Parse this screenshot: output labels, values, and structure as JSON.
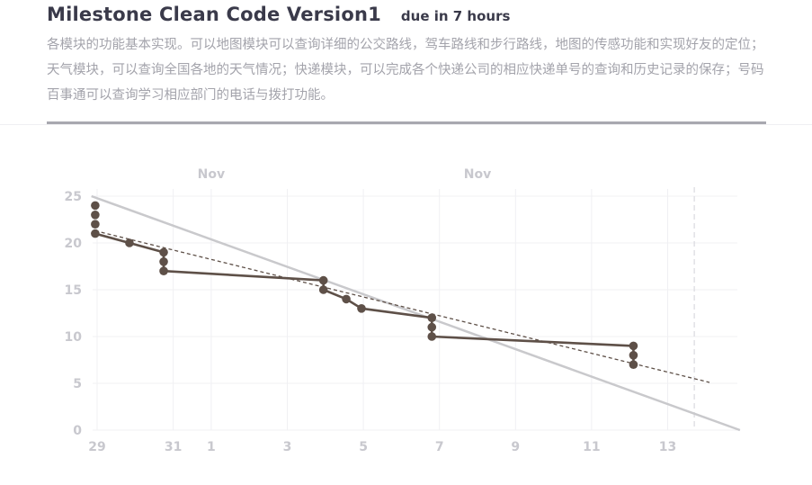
{
  "milestone": {
    "title": "Milestone Clean Code Version1",
    "due": "due in 7 hours",
    "description": "各模块的功能基本实现。可以地图模块可以查询详细的公交路线，驾车路线和步行路线，地图的传感功能和实现好友的定位；天气模块，可以查询全国各地的天气情况；快递模块，可以完成各个快递公司的相应快递单号的查询和历史记录的保存；号码百事通可以查询学习相应部门的电话与拨打功能。"
  },
  "colors": {
    "actual": "#5e5048",
    "ideal": "#c9c9cc",
    "trend": "#5e5048",
    "grid": "#f0f0f3",
    "marker": "#dadadf"
  },
  "chart_data": {
    "type": "line",
    "xlabel": "",
    "ylabel": "",
    "ylim": [
      0,
      25
    ],
    "y_ticks": [
      0,
      5,
      10,
      15,
      20,
      25
    ],
    "month_labels": [
      {
        "label": "Nov",
        "x": 3.0
      },
      {
        "label": "Nov",
        "x": 10.0
      }
    ],
    "x_ticks": [
      {
        "label": "29",
        "x": 0
      },
      {
        "label": "31",
        "x": 2
      },
      {
        "label": "1",
        "x": 3
      },
      {
        "label": "3",
        "x": 5
      },
      {
        "label": "5",
        "x": 7
      },
      {
        "label": "7",
        "x": 9
      },
      {
        "label": "9",
        "x": 11
      },
      {
        "label": "11",
        "x": 13
      },
      {
        "label": "13",
        "x": 15
      }
    ],
    "xlim": [
      -0.15,
      16.9
    ],
    "due_marker_x": 15.7,
    "series": [
      {
        "role": "actual",
        "points": [
          {
            "x": -0.05,
            "y": 24
          },
          {
            "x": -0.05,
            "y": 23
          },
          {
            "x": -0.05,
            "y": 22
          },
          {
            "x": -0.05,
            "y": 21
          },
          {
            "x": 0.85,
            "y": 20
          },
          {
            "x": 1.75,
            "y": 19
          },
          {
            "x": 1.75,
            "y": 18
          },
          {
            "x": 1.75,
            "y": 17
          },
          {
            "x": 5.95,
            "y": 16
          },
          {
            "x": 5.95,
            "y": 15
          },
          {
            "x": 6.55,
            "y": 14
          },
          {
            "x": 6.95,
            "y": 13
          },
          {
            "x": 8.8,
            "y": 12
          },
          {
            "x": 8.8,
            "y": 11
          },
          {
            "x": 8.8,
            "y": 10
          },
          {
            "x": 14.1,
            "y": 9
          },
          {
            "x": 14.1,
            "y": 8
          },
          {
            "x": 14.1,
            "y": 7
          }
        ]
      },
      {
        "role": "ideal",
        "points": [
          {
            "x": -0.15,
            "y": 25
          },
          {
            "x": 16.9,
            "y": 0
          }
        ]
      },
      {
        "role": "trend",
        "points": [
          {
            "x": -0.05,
            "y": 21.3
          },
          {
            "x": 16.1,
            "y": 5.1
          }
        ]
      }
    ]
  }
}
